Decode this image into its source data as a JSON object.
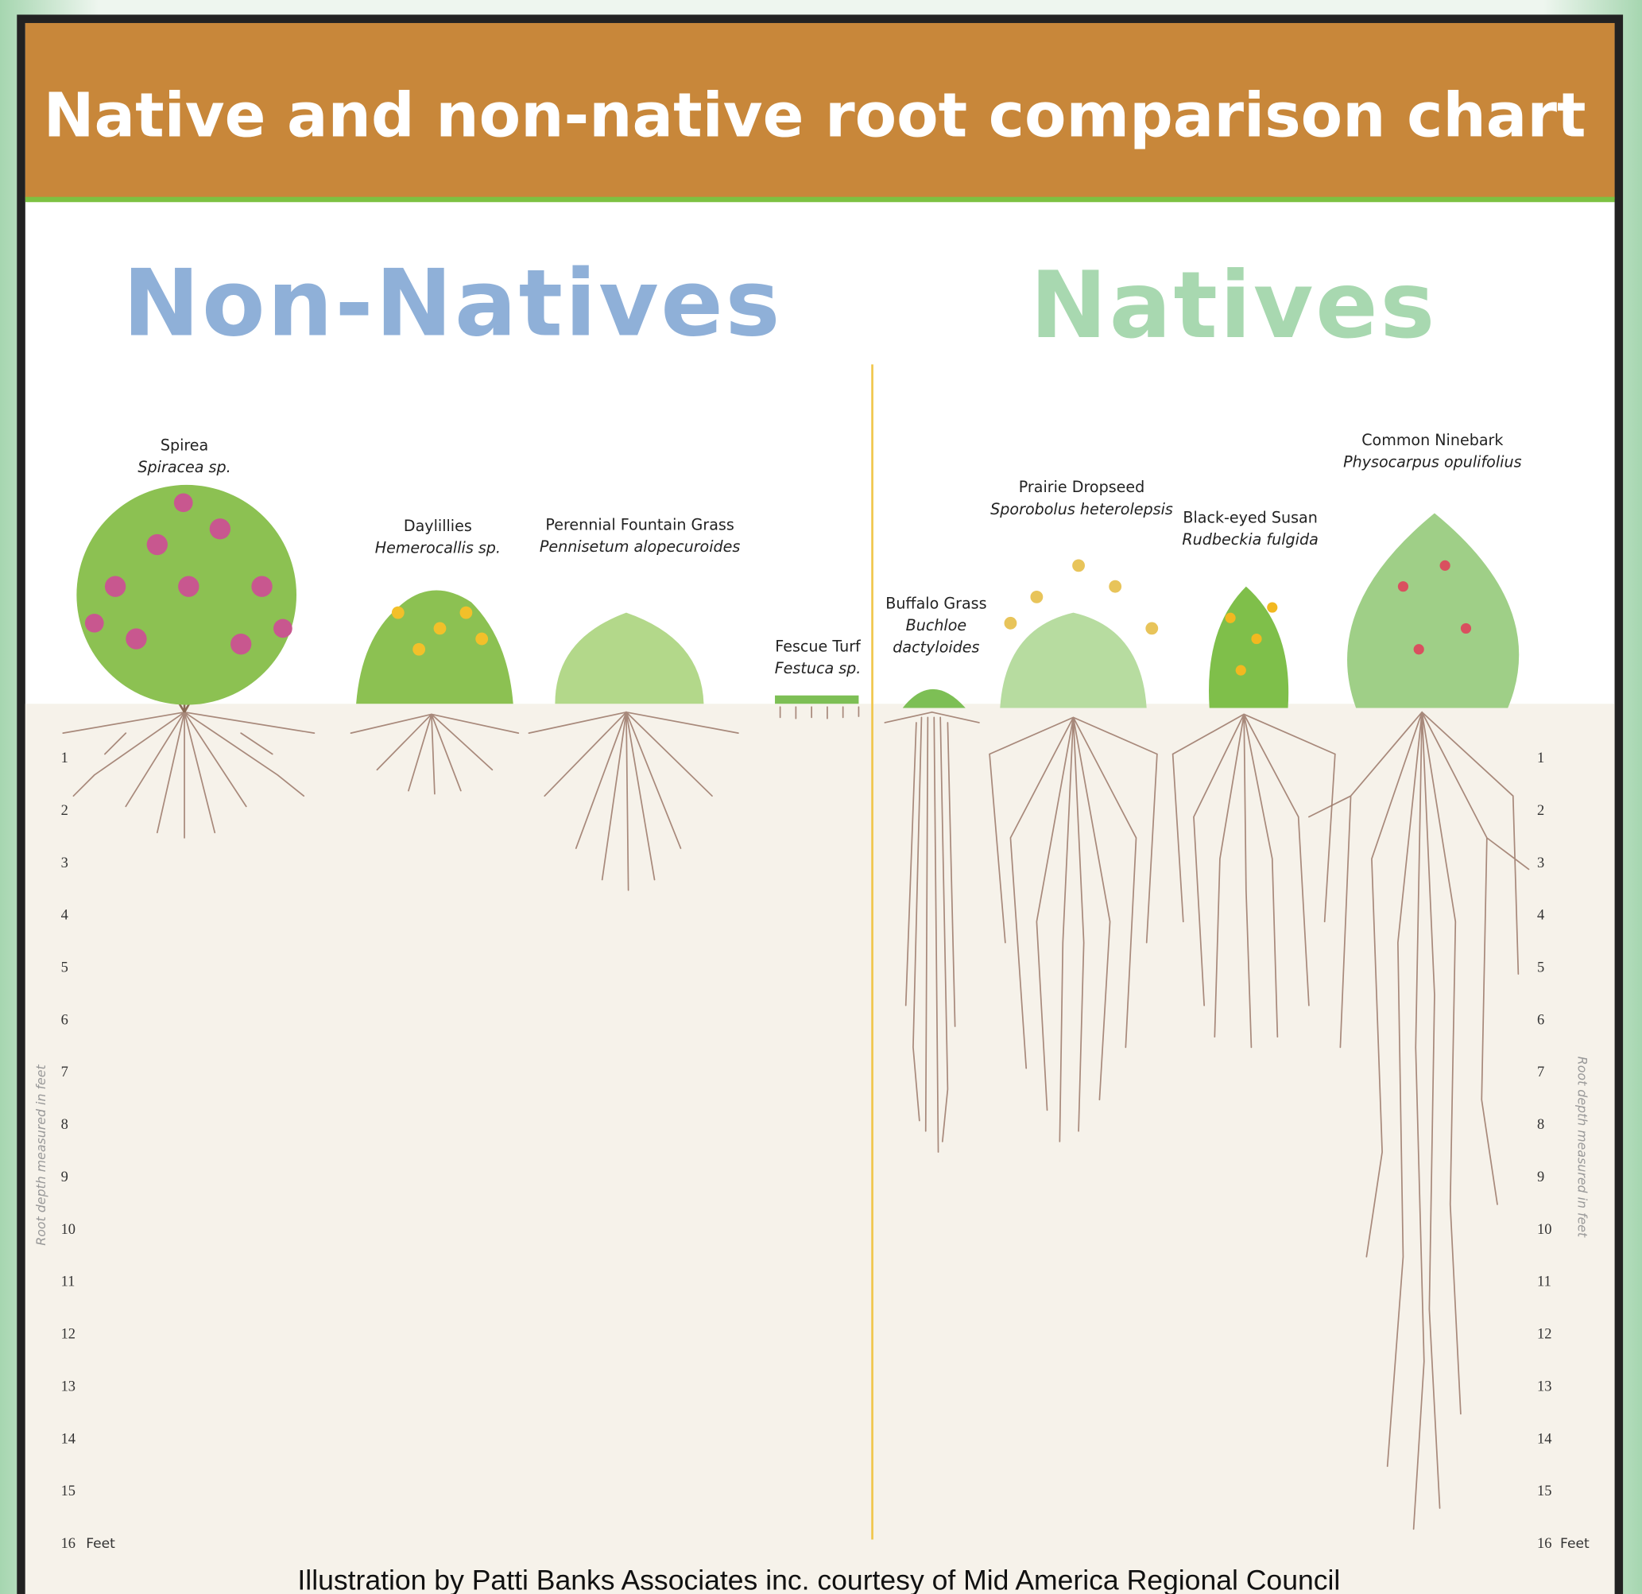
{
  "title": "Native and non-native root comparison chart",
  "sections": {
    "non_native": "Non-Natives",
    "native": "Natives"
  },
  "plants": [
    {
      "name": "Spirea",
      "scientific": [
        "Spiracea sp."
      ]
    },
    {
      "name": "Daylillies",
      "scientific": [
        "Hemerocallis sp."
      ]
    },
    {
      "name": "Perennial Fountain Grass",
      "scientific": [
        "Pennisetum alopecuroides"
      ]
    },
    {
      "name": "Fescue Turf",
      "scientific": [
        "Festuca sp."
      ]
    },
    {
      "name": "Buffalo Grass",
      "scientific": [
        "Buchloe",
        "dactyloides"
      ]
    },
    {
      "name": "Prairie Dropseed",
      "scientific": [
        "Sporobolus heterolepsis"
      ]
    },
    {
      "name": "Black-eyed Susan",
      "scientific": [
        "Rudbeckia fulgida"
      ]
    },
    {
      "name": "Common Ninebark",
      "scientific": [
        "Physocarpus opulifolius"
      ]
    }
  ],
  "depth_ticks": [
    1,
    2,
    3,
    4,
    5,
    6,
    7,
    8,
    9,
    10,
    11,
    12,
    13,
    14,
    15,
    16
  ],
  "depth_unit": "Feet",
  "axis_label": "Root depth measured in feet",
  "credit": "Illustration by Patti Banks Associates inc. courtesy of Mid America Regional Council"
}
